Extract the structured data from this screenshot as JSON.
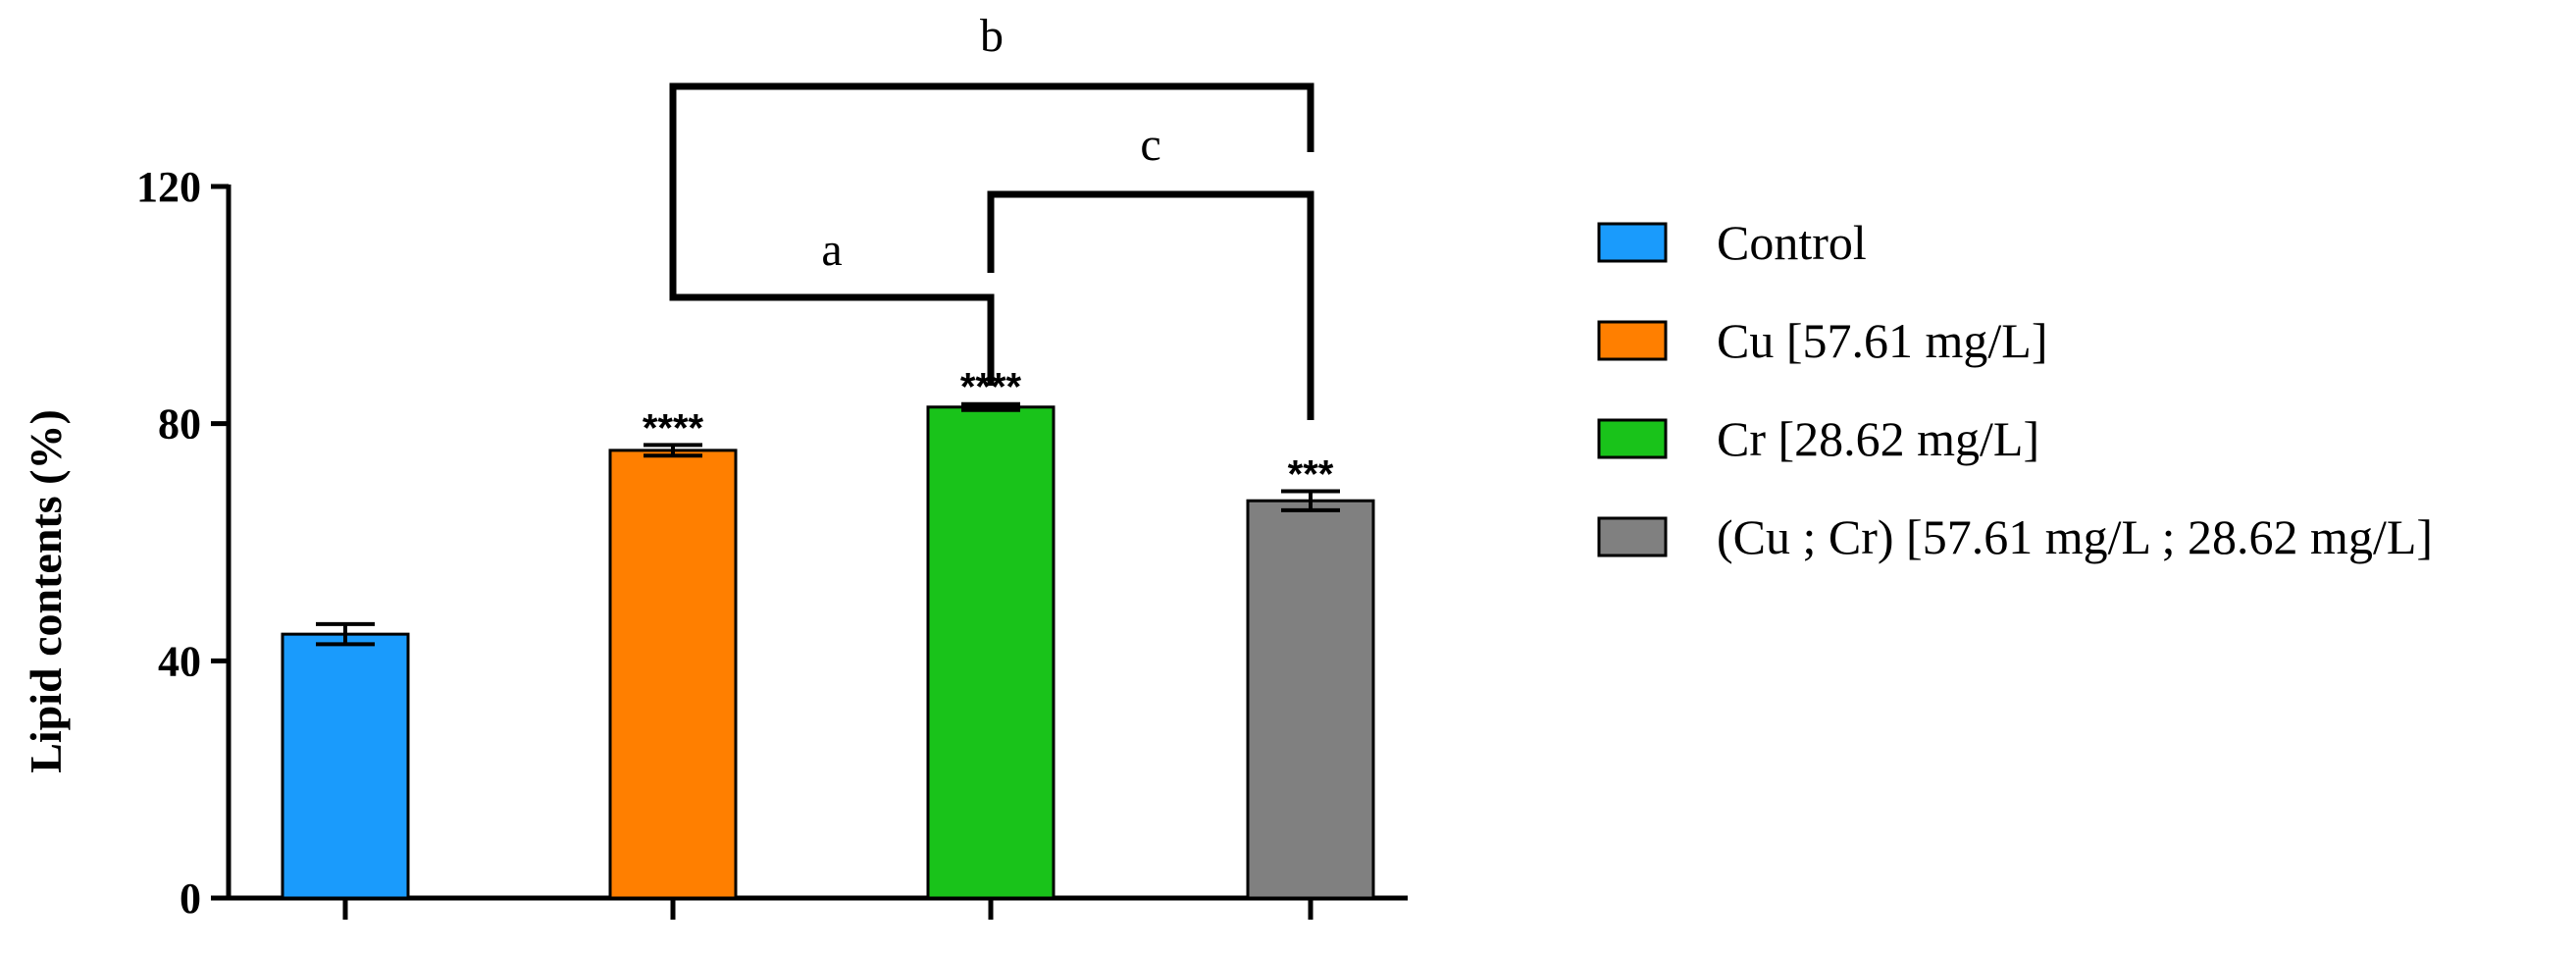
{
  "chart_data": {
    "type": "bar",
    "ylabel": "Lipid contents (%)",
    "xlabel": "",
    "title": "",
    "ylim": [
      0,
      120
    ],
    "yticks": [
      0,
      40,
      80,
      120
    ],
    "bars": [
      {
        "legend": "Control",
        "value": 44.5,
        "error": 1.7,
        "color": "#1a9bfc",
        "significance": ""
      },
      {
        "legend": "Cu [57.61 mg/L]",
        "value": 75.5,
        "error": 0.9,
        "color": "#ff7f00",
        "significance": "****"
      },
      {
        "legend": "Cr [28.62 mg/L]",
        "value": 82.8,
        "error": 0.5,
        "color": "#19c31a",
        "significance": "****"
      },
      {
        "legend": "(Cu ; Cr) [57.61 mg/L ; 28.62 mg/L]",
        "value": 67.0,
        "error": 1.6,
        "color": "#808080",
        "significance": "***"
      }
    ],
    "comparisons": [
      {
        "label": "a",
        "from": 1,
        "to": 2
      },
      {
        "label": "b",
        "from": 1,
        "to": 3
      },
      {
        "label": "c",
        "from": 2,
        "to": 3
      }
    ],
    "legend_position": "right"
  }
}
